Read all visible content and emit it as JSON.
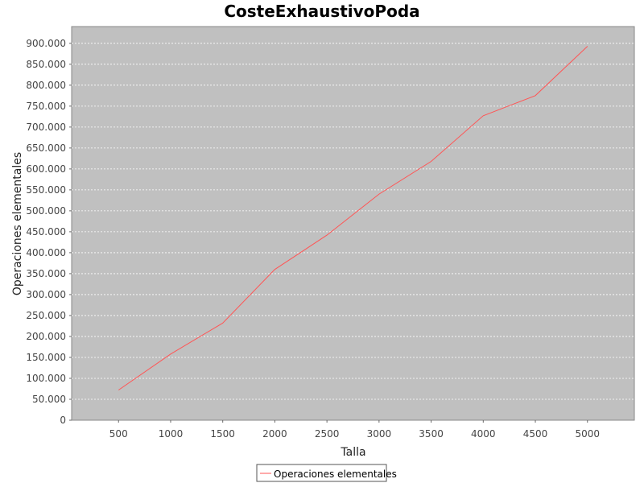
{
  "chart_data": {
    "type": "line",
    "title": "CosteExhaustivoPoda",
    "xlabel": "Talla",
    "ylabel": "Operaciones elementales",
    "x": [
      500,
      1000,
      1500,
      2000,
      2500,
      3000,
      3500,
      4000,
      4500,
      5000
    ],
    "xlim": [
      50,
      5450
    ],
    "ylim": [
      0,
      940000
    ],
    "xticks": [
      500,
      1000,
      1500,
      2000,
      2500,
      3000,
      3500,
      4000,
      4500,
      5000
    ],
    "xtick_labels": [
      "500",
      "1000",
      "1500",
      "2000",
      "2500",
      "3000",
      "3500",
      "4000",
      "4500",
      "5000"
    ],
    "yticks": [
      0,
      50000,
      100000,
      150000,
      200000,
      250000,
      300000,
      350000,
      400000,
      450000,
      500000,
      550000,
      600000,
      650000,
      700000,
      750000,
      800000,
      850000,
      900000
    ],
    "ytick_labels": [
      "0",
      "50.000",
      "100.000",
      "150.000",
      "200.000",
      "250.000",
      "300.000",
      "350.000",
      "400.000",
      "450.000",
      "500.000",
      "550.000",
      "600.000",
      "650.000",
      "700.000",
      "750.000",
      "800.000",
      "850.000",
      "900.000"
    ],
    "series": [
      {
        "name": "Operaciones elementales",
        "color": "#ff5555",
        "values": [
          72000,
          158000,
          232000,
          360000,
          442000,
          540000,
          618000,
          727000,
          775000,
          893000
        ]
      }
    ],
    "plot_background": "#c0c0c0",
    "grid": true,
    "legend_position": "bottom-center"
  }
}
